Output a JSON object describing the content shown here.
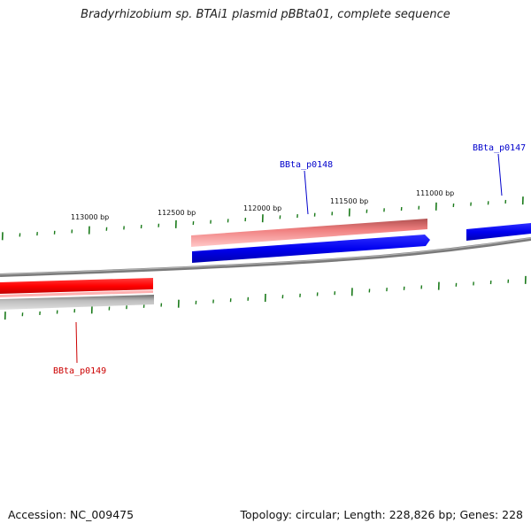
{
  "title": "Bradyrhizobium sp. BTAi1 plasmid pBBta01, complete sequence",
  "footer": {
    "accession": "Accession: NC_009475",
    "summary": "Topology: circular; Length: 228,826 bp; Genes: 228"
  },
  "scale_labels": [
    "113000 bp",
    "112500 bp",
    "112000 bp",
    "111500 bp",
    "111000 bp"
  ],
  "genes": [
    {
      "name": "BBta_p0148",
      "color": "#0000cc"
    },
    {
      "name": "BBta_p0147",
      "color": "#0000cc"
    },
    {
      "name": "BBta_p0149",
      "color": "#cc0000"
    }
  ],
  "colors": {
    "tick": "#1a7a1a",
    "backbone": "#808080",
    "forward_gene": "#0000ff",
    "reverse_gene": "#ff0000",
    "gene_shadow_pink": "#f08080",
    "gene_shadow_gray": "#c0c0c0"
  }
}
